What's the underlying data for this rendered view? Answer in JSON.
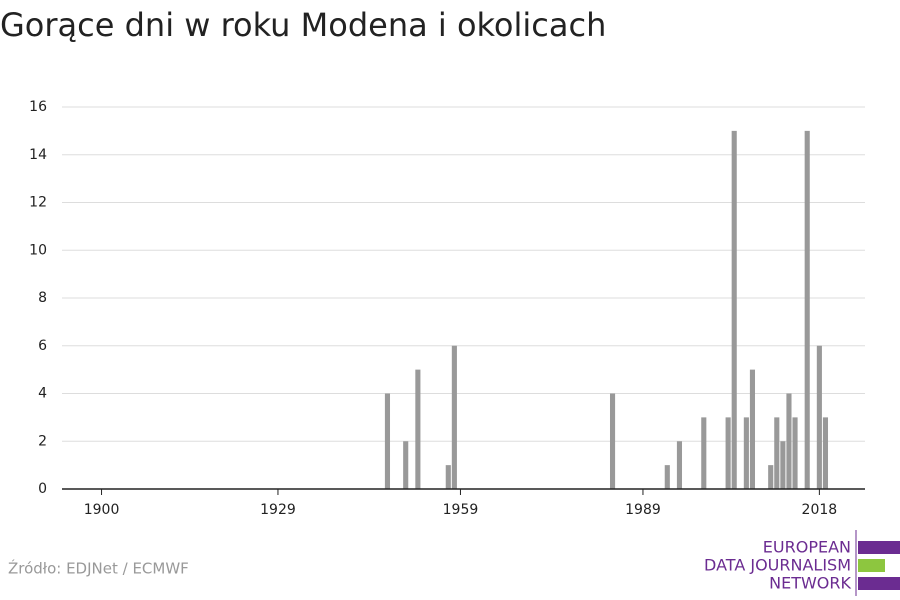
{
  "chart_data": {
    "type": "bar",
    "title": "Gorące dni w roku Modena i okolicach",
    "x": [
      1947,
      1950,
      1952,
      1957,
      1958,
      1984,
      1993,
      1995,
      1999,
      2003,
      2004,
      2006,
      2007,
      2010,
      2011,
      2012,
      2013,
      2014,
      2016,
      2018,
      2019
    ],
    "values": [
      4,
      2,
      5,
      1,
      6,
      4,
      1,
      2,
      3,
      3,
      15,
      3,
      5,
      1,
      3,
      2,
      4,
      3,
      15,
      6,
      3
    ],
    "color": "#999999",
    "xlim": [
      1893.5,
      2025.5
    ],
    "xticks": [
      1900,
      1929,
      1959,
      1989,
      2018
    ],
    "ylim": [
      0,
      16
    ],
    "yticks": [
      0,
      2,
      4,
      6,
      8,
      10,
      12,
      14,
      16
    ],
    "grid": true,
    "source": "Źródło: EDJNet / ECMWF",
    "logo": [
      "EUROPEAN",
      "DATA JOURNALISM",
      "NETWORK"
    ]
  }
}
